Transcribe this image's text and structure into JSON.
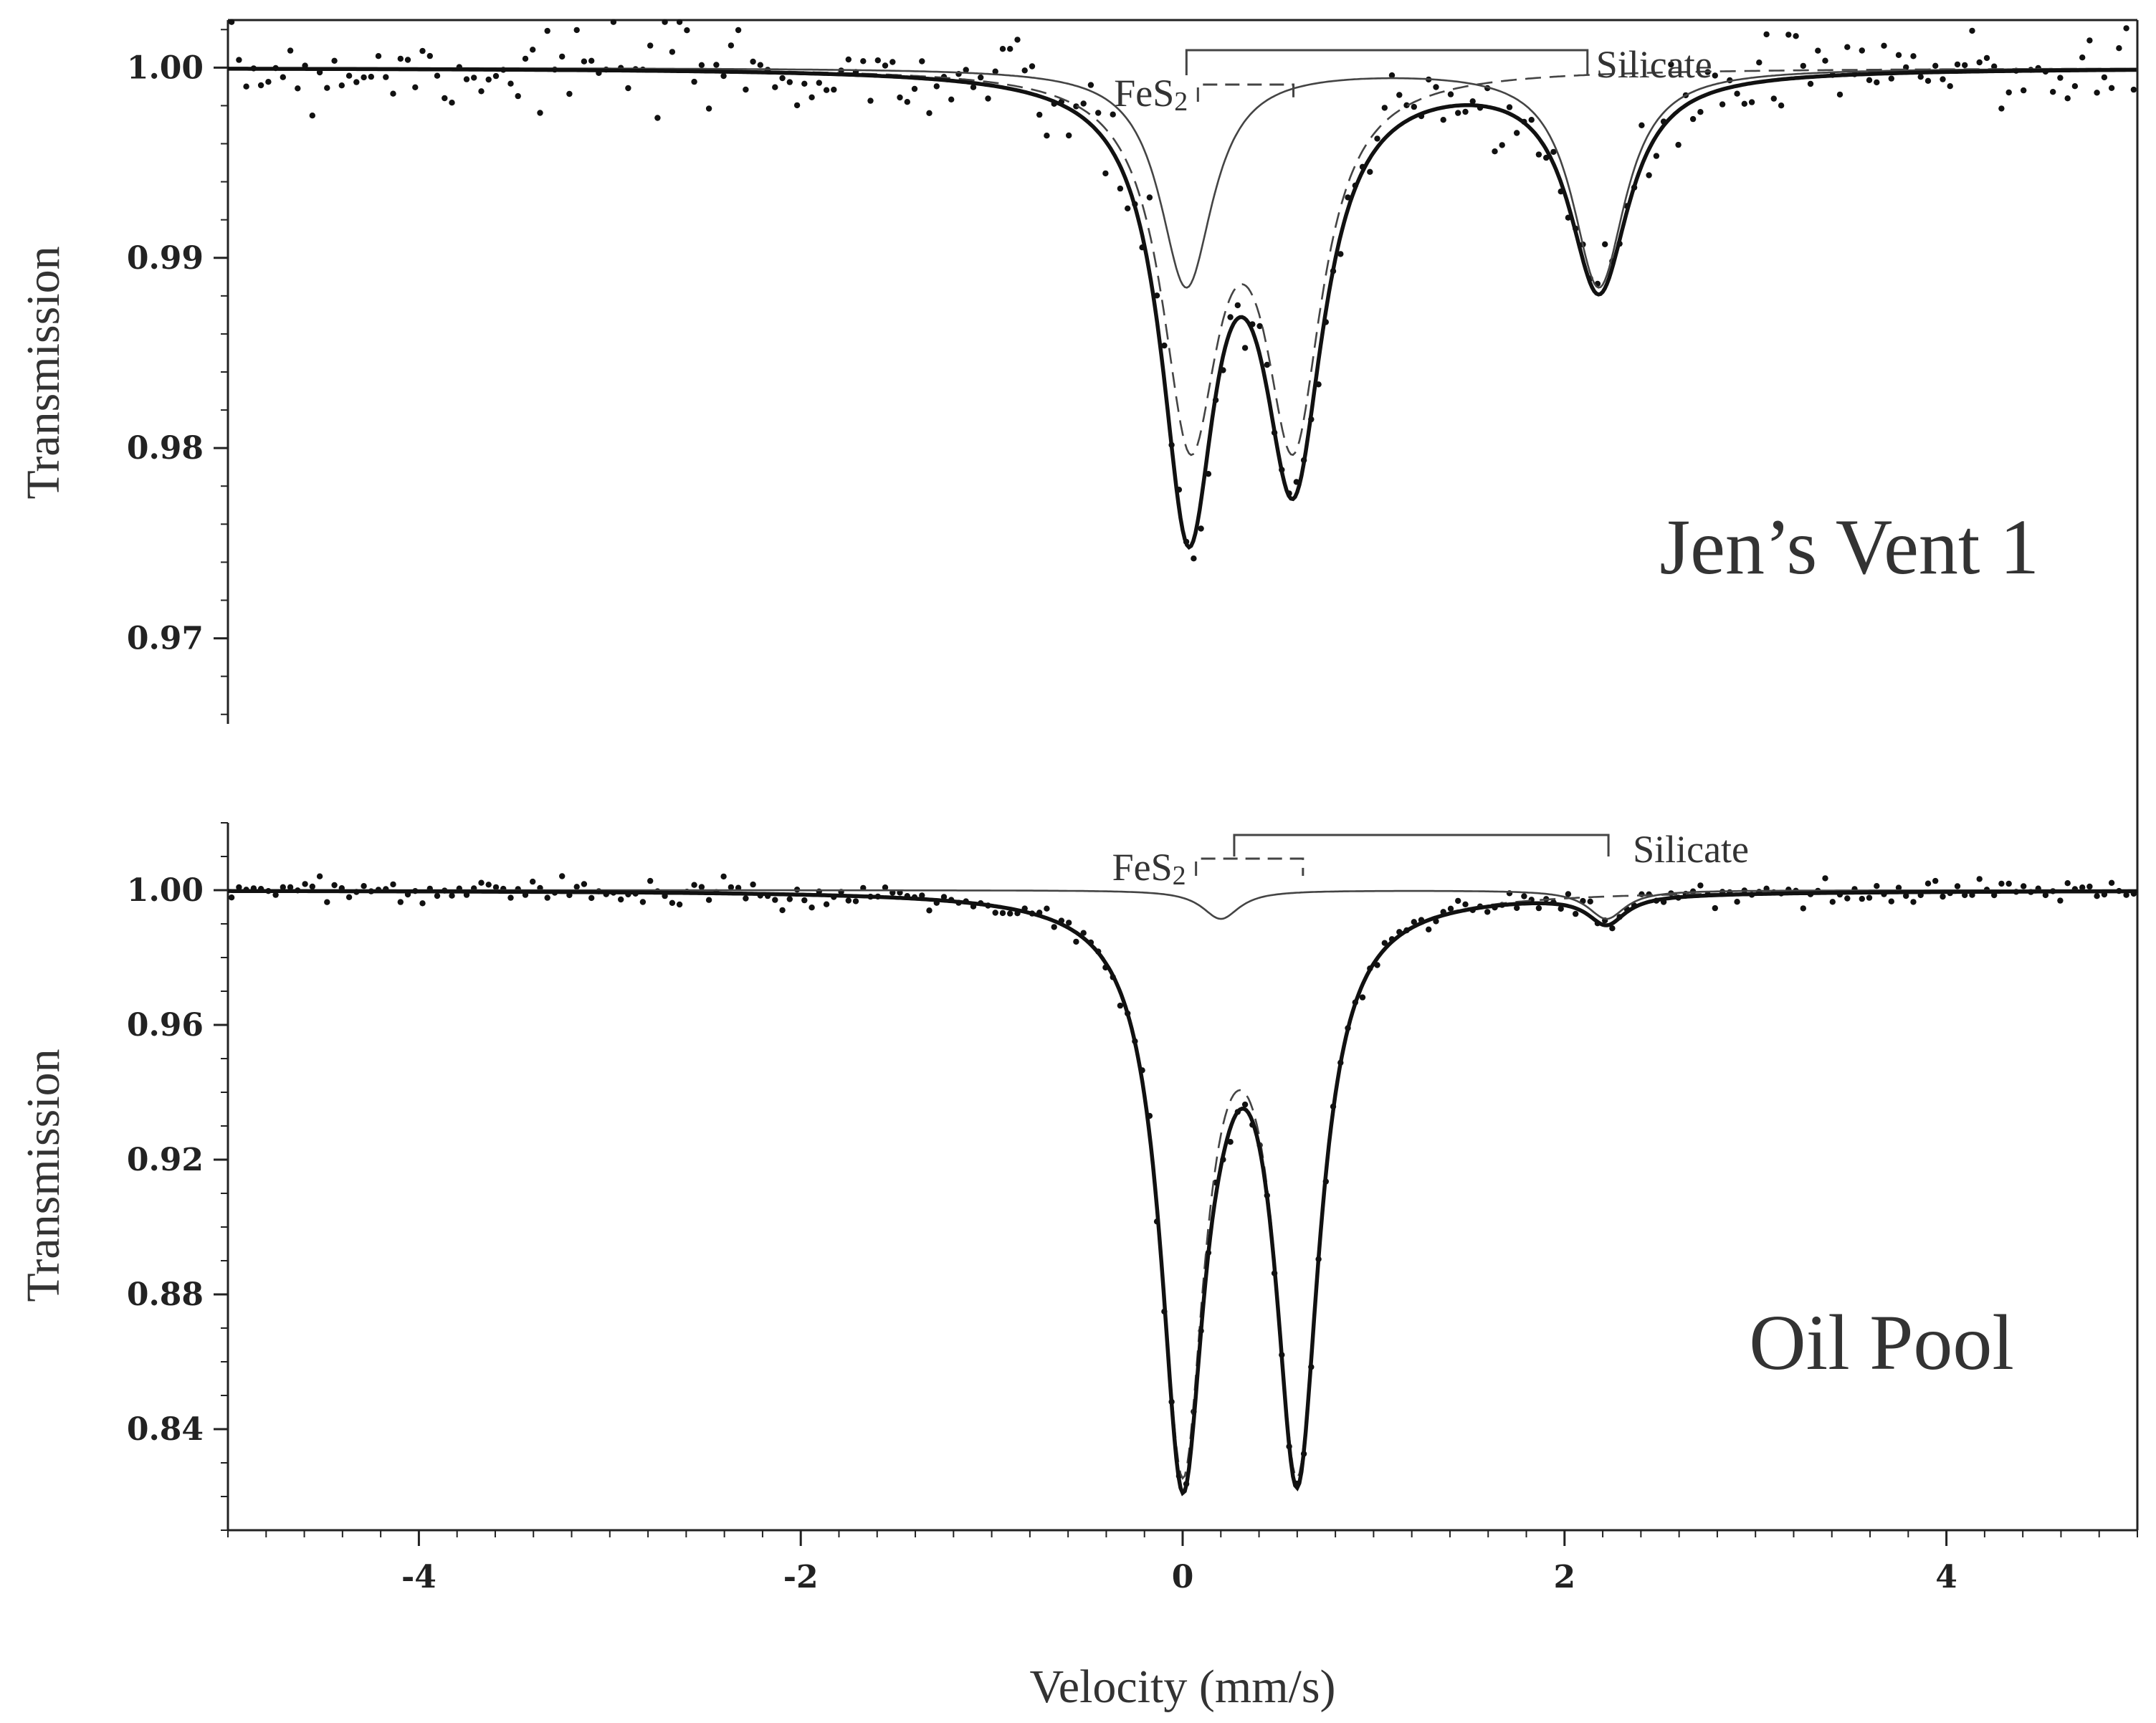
{
  "figure": {
    "xlabel": "Velocity (mm/s)",
    "colors": {
      "axis": "#222222",
      "fit": "#111111",
      "component": "#444444",
      "points": "#111111"
    }
  },
  "chart_data": [
    {
      "type": "scatter",
      "panel": "top",
      "sample_label": "Jen’s Vent 1",
      "ylabel": "Transmission",
      "xlim": [
        -5,
        5
      ],
      "ylim": [
        0.9655,
        1.0025
      ],
      "yticks": [
        1.0,
        0.99,
        0.98,
        0.97
      ],
      "ytick_labels": [
        "1.00",
        "0.99",
        "0.98",
        "0.97"
      ],
      "ytick_minor_step": 0.002,
      "annotations": {
        "fes2": {
          "label": "FeS",
          "subscript": "2",
          "x1": 0.08,
          "x2": 0.58
        },
        "silicate": {
          "label": "Silicate",
          "x1": 0.02,
          "x2": 2.12
        }
      },
      "series": [
        {
          "role": "fit-total",
          "style": "solid-thick",
          "peaks": [
            {
              "x": 0.02,
              "depth": 0.0115,
              "hw": 0.17
            },
            {
              "x": 0.58,
              "depth": 0.0205,
              "hw": 0.19
            },
            {
              "x": 0.04,
              "depth": 0.0115,
              "hw": 0.17
            },
            {
              "x": 2.18,
              "depth": 0.0115,
              "hw": 0.19
            }
          ]
        },
        {
          "role": "fes2-component",
          "style": "dashed",
          "peaks": [
            {
              "x": 0.04,
              "depth": 0.0185,
              "hw": 0.18
            },
            {
              "x": 0.58,
              "depth": 0.0185,
              "hw": 0.18
            }
          ]
        },
        {
          "role": "silicate-component",
          "style": "solid-thin",
          "peaks": [
            {
              "x": 0.02,
              "depth": 0.0115,
              "hw": 0.17
            },
            {
              "x": 2.18,
              "depth": 0.0115,
              "hw": 0.17
            }
          ]
        }
      ],
      "points": {
        "count": 260,
        "noise": 0.0012,
        "seed": 7
      }
    },
    {
      "type": "scatter",
      "panel": "bottom",
      "sample_label": "Oil Pool",
      "ylabel": "Transmission",
      "xlim": [
        -5,
        5
      ],
      "ylim": [
        0.81,
        1.02
      ],
      "yticks": [
        1.0,
        0.96,
        0.92,
        0.88,
        0.84
      ],
      "ytick_labels": [
        "1.00",
        "0.96",
        "0.92",
        "0.88",
        "0.84"
      ],
      "ytick_minor_step": 0.01,
      "annotations": {
        "fes2": {
          "label": "FeS",
          "subscript": "2",
          "x1": 0.07,
          "x2": 0.63
        },
        "silicate": {
          "label": "Silicate",
          "x1": 0.27,
          "x2": 2.23
        }
      },
      "series": [
        {
          "role": "fit-total",
          "style": "solid-thick",
          "peaks": [
            {
              "x": 0.0,
              "depth": 0.168,
              "hw": 0.14
            },
            {
              "x": 0.6,
              "depth": 0.168,
              "hw": 0.14
            },
            {
              "x": 0.2,
              "depth": 0.0085,
              "hw": 0.12
            },
            {
              "x": 2.22,
              "depth": 0.0085,
              "hw": 0.12
            }
          ]
        },
        {
          "role": "fes2-component",
          "style": "dashed",
          "peaks": [
            {
              "x": 0.0,
              "depth": 0.166,
              "hw": 0.14
            },
            {
              "x": 0.6,
              "depth": 0.166,
              "hw": 0.14
            }
          ]
        },
        {
          "role": "silicate-component",
          "style": "solid-thin",
          "peaks": [
            {
              "x": 0.2,
              "depth": 0.0085,
              "hw": 0.12
            },
            {
              "x": 2.22,
              "depth": 0.0085,
              "hw": 0.12
            }
          ]
        }
      ],
      "points": {
        "count": 260,
        "noise": 0.0018,
        "seed": 13
      }
    }
  ],
  "xaxis": {
    "ticks": [
      -4,
      -2,
      0,
      2,
      4
    ],
    "tick_labels": [
      "-4",
      "-2",
      "0",
      "2",
      "4"
    ],
    "minor_step": 0.2
  }
}
